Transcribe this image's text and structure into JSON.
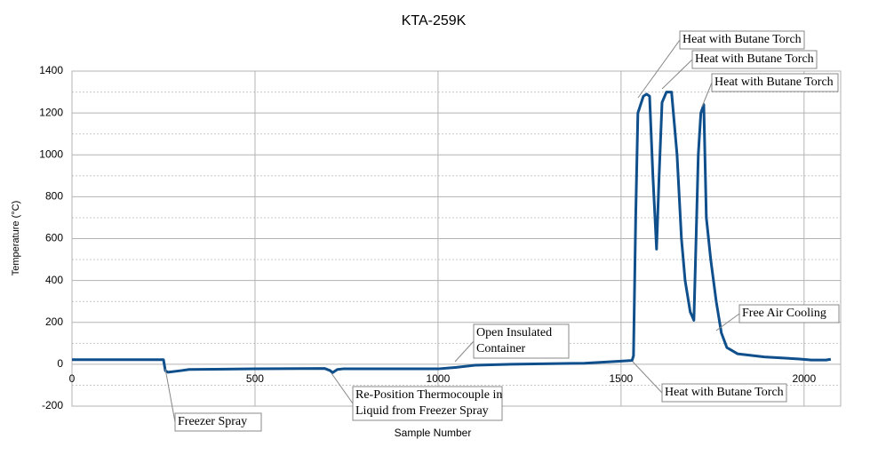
{
  "chart_data": {
    "type": "line",
    "title": "KTA-259K",
    "x_label": "Sample Number",
    "y_label": "Temperature (°C)",
    "x": [
      0,
      250,
      255,
      262,
      300,
      320,
      500,
      690,
      705,
      712,
      725,
      740,
      1000,
      1050,
      1100,
      1200,
      1400,
      1500,
      1530,
      1534,
      1540,
      1546,
      1561,
      1570,
      1578,
      1587,
      1597,
      1604,
      1612,
      1624,
      1638,
      1653,
      1665,
      1675,
      1689,
      1699,
      1705,
      1711,
      1718,
      1726,
      1733,
      1745,
      1760,
      1774,
      1789,
      1818,
      1891,
      1988,
      2020,
      2060,
      2073
    ],
    "series": [
      {
        "name": "Temperature",
        "color": "#0f4f8c",
        "values": [
          22,
          22,
          -30,
          -38,
          -30,
          -25,
          -22,
          -20,
          -30,
          -40,
          -25,
          -22,
          -22,
          -15,
          -5,
          0,
          5,
          15,
          18,
          40,
          700,
          1200,
          1280,
          1290,
          1280,
          900,
          550,
          900,
          1250,
          1300,
          1300,
          1000,
          600,
          400,
          250,
          210,
          600,
          1000,
          1200,
          1240,
          700,
          500,
          300,
          150,
          80,
          50,
          35,
          25,
          20,
          20,
          24
        ]
      }
    ],
    "xlim": [
      0,
      2100
    ],
    "ylim": [
      -200,
      1400
    ],
    "xticks": [
      0,
      500,
      1000,
      1500,
      2000
    ],
    "yticks": [
      -200,
      0,
      200,
      400,
      600,
      800,
      1000,
      1200,
      1400
    ],
    "grid": true,
    "annotations": [
      {
        "lines": [
          "Heat with Butane Torch"
        ]
      },
      {
        "lines": [
          "Heat with Butane Torch"
        ]
      },
      {
        "lines": [
          "Heat with Butane Torch"
        ]
      },
      {
        "lines": [
          "Free Air Cooling"
        ]
      },
      {
        "lines": [
          "Heat with Butane Torch"
        ]
      },
      {
        "lines": [
          "Open Insulated",
          "Container"
        ]
      },
      {
        "lines": [
          "Re-Position Thermocouple in",
          "Liquid from Freezer Spray"
        ]
      },
      {
        "lines": [
          "Freezer Spray"
        ]
      }
    ]
  }
}
